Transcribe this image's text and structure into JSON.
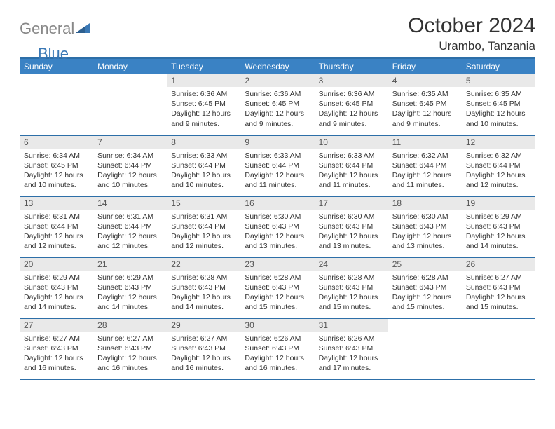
{
  "logo": {
    "part1": "General",
    "part2": "Blue"
  },
  "title": "October 2024",
  "location": "Urambo, Tanzania",
  "colors": {
    "header_bg": "#3a82c4",
    "header_border": "#2d6fa8",
    "daynum_bg": "#e9e9e9",
    "text": "#333333",
    "logo_gray": "#888888",
    "logo_blue": "#3a78b5"
  },
  "weekdays": [
    "Sunday",
    "Monday",
    "Tuesday",
    "Wednesday",
    "Thursday",
    "Friday",
    "Saturday"
  ],
  "weeks": [
    [
      null,
      null,
      {
        "n": "1",
        "sr": "Sunrise: 6:36 AM",
        "ss": "Sunset: 6:45 PM",
        "d1": "Daylight: 12 hours",
        "d2": "and 9 minutes."
      },
      {
        "n": "2",
        "sr": "Sunrise: 6:36 AM",
        "ss": "Sunset: 6:45 PM",
        "d1": "Daylight: 12 hours",
        "d2": "and 9 minutes."
      },
      {
        "n": "3",
        "sr": "Sunrise: 6:36 AM",
        "ss": "Sunset: 6:45 PM",
        "d1": "Daylight: 12 hours",
        "d2": "and 9 minutes."
      },
      {
        "n": "4",
        "sr": "Sunrise: 6:35 AM",
        "ss": "Sunset: 6:45 PM",
        "d1": "Daylight: 12 hours",
        "d2": "and 9 minutes."
      },
      {
        "n": "5",
        "sr": "Sunrise: 6:35 AM",
        "ss": "Sunset: 6:45 PM",
        "d1": "Daylight: 12 hours",
        "d2": "and 10 minutes."
      }
    ],
    [
      {
        "n": "6",
        "sr": "Sunrise: 6:34 AM",
        "ss": "Sunset: 6:45 PM",
        "d1": "Daylight: 12 hours",
        "d2": "and 10 minutes."
      },
      {
        "n": "7",
        "sr": "Sunrise: 6:34 AM",
        "ss": "Sunset: 6:44 PM",
        "d1": "Daylight: 12 hours",
        "d2": "and 10 minutes."
      },
      {
        "n": "8",
        "sr": "Sunrise: 6:33 AM",
        "ss": "Sunset: 6:44 PM",
        "d1": "Daylight: 12 hours",
        "d2": "and 10 minutes."
      },
      {
        "n": "9",
        "sr": "Sunrise: 6:33 AM",
        "ss": "Sunset: 6:44 PM",
        "d1": "Daylight: 12 hours",
        "d2": "and 11 minutes."
      },
      {
        "n": "10",
        "sr": "Sunrise: 6:33 AM",
        "ss": "Sunset: 6:44 PM",
        "d1": "Daylight: 12 hours",
        "d2": "and 11 minutes."
      },
      {
        "n": "11",
        "sr": "Sunrise: 6:32 AM",
        "ss": "Sunset: 6:44 PM",
        "d1": "Daylight: 12 hours",
        "d2": "and 11 minutes."
      },
      {
        "n": "12",
        "sr": "Sunrise: 6:32 AM",
        "ss": "Sunset: 6:44 PM",
        "d1": "Daylight: 12 hours",
        "d2": "and 12 minutes."
      }
    ],
    [
      {
        "n": "13",
        "sr": "Sunrise: 6:31 AM",
        "ss": "Sunset: 6:44 PM",
        "d1": "Daylight: 12 hours",
        "d2": "and 12 minutes."
      },
      {
        "n": "14",
        "sr": "Sunrise: 6:31 AM",
        "ss": "Sunset: 6:44 PM",
        "d1": "Daylight: 12 hours",
        "d2": "and 12 minutes."
      },
      {
        "n": "15",
        "sr": "Sunrise: 6:31 AM",
        "ss": "Sunset: 6:44 PM",
        "d1": "Daylight: 12 hours",
        "d2": "and 12 minutes."
      },
      {
        "n": "16",
        "sr": "Sunrise: 6:30 AM",
        "ss": "Sunset: 6:43 PM",
        "d1": "Daylight: 12 hours",
        "d2": "and 13 minutes."
      },
      {
        "n": "17",
        "sr": "Sunrise: 6:30 AM",
        "ss": "Sunset: 6:43 PM",
        "d1": "Daylight: 12 hours",
        "d2": "and 13 minutes."
      },
      {
        "n": "18",
        "sr": "Sunrise: 6:30 AM",
        "ss": "Sunset: 6:43 PM",
        "d1": "Daylight: 12 hours",
        "d2": "and 13 minutes."
      },
      {
        "n": "19",
        "sr": "Sunrise: 6:29 AM",
        "ss": "Sunset: 6:43 PM",
        "d1": "Daylight: 12 hours",
        "d2": "and 14 minutes."
      }
    ],
    [
      {
        "n": "20",
        "sr": "Sunrise: 6:29 AM",
        "ss": "Sunset: 6:43 PM",
        "d1": "Daylight: 12 hours",
        "d2": "and 14 minutes."
      },
      {
        "n": "21",
        "sr": "Sunrise: 6:29 AM",
        "ss": "Sunset: 6:43 PM",
        "d1": "Daylight: 12 hours",
        "d2": "and 14 minutes."
      },
      {
        "n": "22",
        "sr": "Sunrise: 6:28 AM",
        "ss": "Sunset: 6:43 PM",
        "d1": "Daylight: 12 hours",
        "d2": "and 14 minutes."
      },
      {
        "n": "23",
        "sr": "Sunrise: 6:28 AM",
        "ss": "Sunset: 6:43 PM",
        "d1": "Daylight: 12 hours",
        "d2": "and 15 minutes."
      },
      {
        "n": "24",
        "sr": "Sunrise: 6:28 AM",
        "ss": "Sunset: 6:43 PM",
        "d1": "Daylight: 12 hours",
        "d2": "and 15 minutes."
      },
      {
        "n": "25",
        "sr": "Sunrise: 6:28 AM",
        "ss": "Sunset: 6:43 PM",
        "d1": "Daylight: 12 hours",
        "d2": "and 15 minutes."
      },
      {
        "n": "26",
        "sr": "Sunrise: 6:27 AM",
        "ss": "Sunset: 6:43 PM",
        "d1": "Daylight: 12 hours",
        "d2": "and 15 minutes."
      }
    ],
    [
      {
        "n": "27",
        "sr": "Sunrise: 6:27 AM",
        "ss": "Sunset: 6:43 PM",
        "d1": "Daylight: 12 hours",
        "d2": "and 16 minutes."
      },
      {
        "n": "28",
        "sr": "Sunrise: 6:27 AM",
        "ss": "Sunset: 6:43 PM",
        "d1": "Daylight: 12 hours",
        "d2": "and 16 minutes."
      },
      {
        "n": "29",
        "sr": "Sunrise: 6:27 AM",
        "ss": "Sunset: 6:43 PM",
        "d1": "Daylight: 12 hours",
        "d2": "and 16 minutes."
      },
      {
        "n": "30",
        "sr": "Sunrise: 6:26 AM",
        "ss": "Sunset: 6:43 PM",
        "d1": "Daylight: 12 hours",
        "d2": "and 16 minutes."
      },
      {
        "n": "31",
        "sr": "Sunrise: 6:26 AM",
        "ss": "Sunset: 6:43 PM",
        "d1": "Daylight: 12 hours",
        "d2": "and 17 minutes."
      },
      null,
      null
    ]
  ]
}
